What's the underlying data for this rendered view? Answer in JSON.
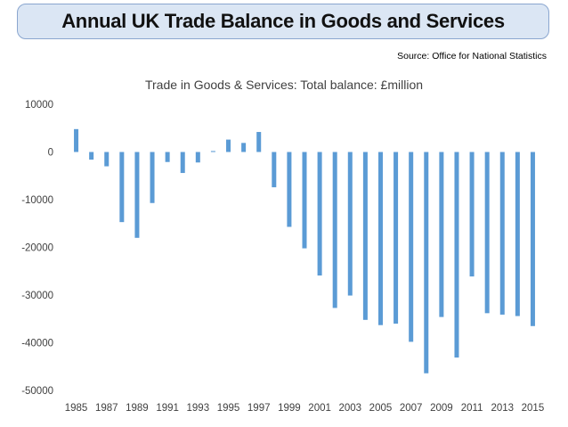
{
  "header": {
    "title": "Annual UK Trade Balance in Goods and Services"
  },
  "source": "Source: Office for National Statistics",
  "chart_data": {
    "type": "bar",
    "title": "Trade in Goods & Services: Total balance: £million",
    "xlabel": "",
    "ylabel": "",
    "ylim": [
      -50000,
      10000
    ],
    "yticks": [
      10000,
      0,
      -10000,
      -20000,
      -30000,
      -40000,
      -50000
    ],
    "categories": [
      "1985",
      "1986",
      "1987",
      "1988",
      "1989",
      "1990",
      "1991",
      "1992",
      "1993",
      "1994",
      "1995",
      "1996",
      "1997",
      "1998",
      "1999",
      "2000",
      "2001",
      "2002",
      "2003",
      "2004",
      "2005",
      "2006",
      "2007",
      "2008",
      "2009",
      "2010",
      "2011",
      "2012",
      "2013",
      "2014",
      "2015"
    ],
    "xtick_labels": [
      "1985",
      "1987",
      "1989",
      "1991",
      "1993",
      "1995",
      "1997",
      "1999",
      "2001",
      "2003",
      "2005",
      "2007",
      "2009",
      "2011",
      "2013",
      "2015"
    ],
    "values": [
      4800,
      -1600,
      -3000,
      -14700,
      -18000,
      -10700,
      -2100,
      -4400,
      -2200,
      200,
      2600,
      1900,
      4200,
      -7400,
      -15700,
      -20200,
      -25900,
      -32700,
      -30100,
      -35200,
      -36300,
      -36000,
      -39800,
      -46400,
      -34600,
      -43100,
      -26100,
      -33800,
      -34100,
      -34400,
      -36500
    ],
    "bar_color": "#5b9bd5",
    "grid": false,
    "legend": "none"
  }
}
